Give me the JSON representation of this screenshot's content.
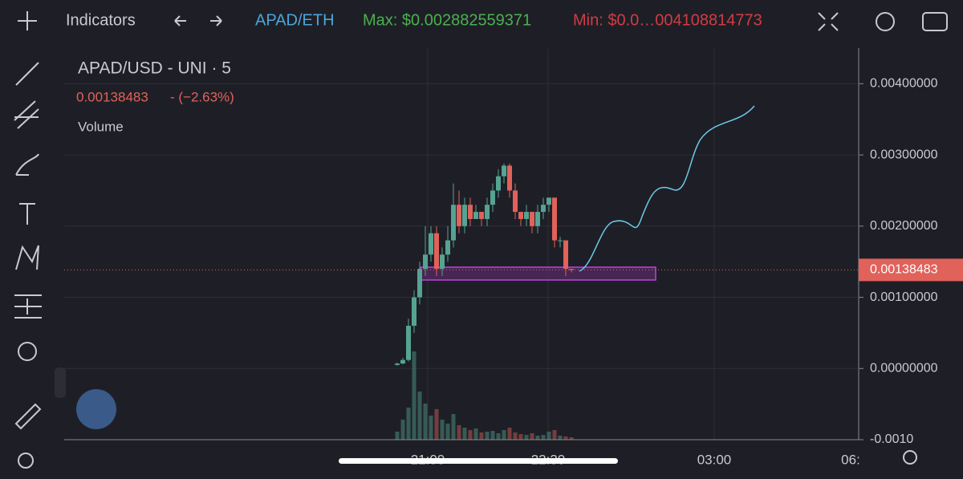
{
  "toolbar": {
    "indicators": "Indicators",
    "pair": "APAD/ETH",
    "max": "Max: $0.002882559371",
    "min": "Min: $0.0…004108814773"
  },
  "chart_data": {
    "type": "candlestick",
    "title": "APAD/USD - UNI · 5",
    "last_price": 0.00138483,
    "change_label": "- (−2.63%)",
    "volume_label": "Volume",
    "up_color": "#55a393",
    "down_color": "#e0625a",
    "open": [
      5e-05,
      7e-05,
      0.00012,
      0.0006,
      0.001,
      0.0014,
      0.0016,
      0.0019,
      0.0014,
      0.0016,
      0.0018,
      0.0023,
      0.002,
      0.0023,
      0.0021,
      0.0022,
      0.0021,
      0.0023,
      0.0025,
      0.0027,
      0.00285,
      0.0025,
      0.0022,
      0.0021,
      0.0022,
      0.002,
      0.0022,
      0.0023,
      0.0024,
      0.0018,
      0.0018,
      0.0014
    ],
    "high": [
      8e-05,
      0.00015,
      0.0007,
      0.0011,
      0.0015,
      0.002,
      0.002,
      0.002,
      0.0017,
      0.002,
      0.0026,
      0.0025,
      0.0024,
      0.0024,
      0.0023,
      0.0022,
      0.0024,
      0.0026,
      0.0028,
      0.00288,
      0.00288,
      0.0026,
      0.0022,
      0.0023,
      0.0022,
      0.0023,
      0.0024,
      0.0024,
      0.0024,
      0.00185,
      0.0018,
      0.0014
    ],
    "low": [
      4e-05,
      6e-05,
      0.0001,
      0.0005,
      0.0009,
      0.0013,
      0.0015,
      0.0013,
      0.0013,
      0.0015,
      0.0017,
      0.0019,
      0.0019,
      0.002,
      0.0021,
      0.002,
      0.002,
      0.0022,
      0.0024,
      0.0026,
      0.0024,
      0.0021,
      0.002,
      0.002,
      0.0019,
      0.0019,
      0.0021,
      0.0022,
      0.0017,
      0.0017,
      0.0013,
      0.00135
    ],
    "close": [
      7e-05,
      0.00012,
      0.0006,
      0.001,
      0.0014,
      0.0016,
      0.0019,
      0.0014,
      0.0016,
      0.0018,
      0.0023,
      0.002,
      0.0023,
      0.0021,
      0.0022,
      0.0021,
      0.0023,
      0.0025,
      0.0027,
      0.00285,
      0.0025,
      0.0022,
      0.0021,
      0.0022,
      0.002,
      0.0022,
      0.0023,
      0.0024,
      0.0018,
      0.0018,
      0.0014,
      0.00138483
    ],
    "volume": [
      10,
      25,
      40,
      110,
      60,
      45,
      30,
      38,
      25,
      20,
      32,
      18,
      15,
      12,
      14,
      9,
      10,
      11,
      8,
      12,
      15,
      9,
      7,
      6,
      8,
      5,
      6,
      10,
      12,
      5,
      4,
      3
    ],
    "ylim": [
      -0.001,
      0.0045
    ],
    "yticks": [
      {
        "value": 0.004,
        "label": "0.00400000"
      },
      {
        "value": 0.003,
        "label": "0.00300000"
      },
      {
        "value": 0.002,
        "label": "0.00200000"
      },
      {
        "value": 0.001,
        "label": "0.00100000"
      },
      {
        "value": 0,
        "label": "0.00000000"
      },
      {
        "value": -0.001,
        "label": "-0.0010"
      }
    ],
    "xtick_labels": [
      "21:00",
      "22:30",
      "03:00",
      "06:"
    ],
    "grid": true
  }
}
